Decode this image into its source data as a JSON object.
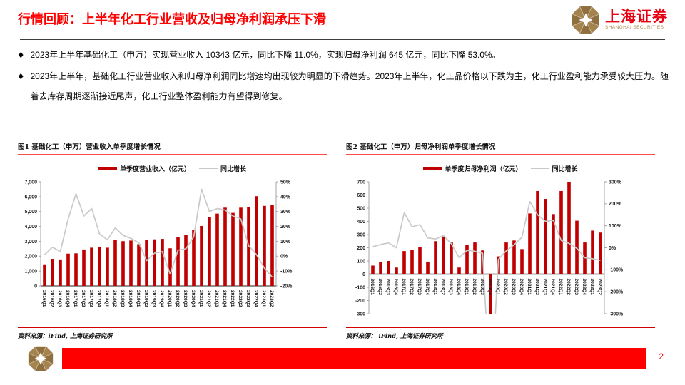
{
  "header": {
    "title": "行情回顾：上半年化工行业营收及归母净利润承压下滑",
    "logo_text": "上海证券",
    "logo_subtext": "SHANGHAI SECURITIES"
  },
  "bullets": [
    "2023年上半年基础化工（申万）实现营业收入 10343 亿元，同比下降 11.0%，实现归母净利润 645 亿元，同比下降 53.0%。",
    "2023年上半年，基础化工行业营业收入和归母净利润同比增速均出现较为明显的下滑趋势。2023年上半年，化工品价格以下跌为主，化工行业盈利能力承受较大压力。随着去库存周期逐渐接近尾声，化工行业整体盈利能力有望得到修复。"
  ],
  "figures": [
    {
      "source": "资料来源：iFind, 上海证券研究所"
    },
    {
      "source": "资料来源： iFind, 上海证券研究所"
    }
  ],
  "footer": {
    "page_number": "2"
  },
  "colors": {
    "title_red": "#fe0000",
    "bar_red": "#c00000",
    "line_gray": "#c9c9c9",
    "caption_underline": "#ff4a4a",
    "source_rule": "#d40000",
    "logo_gold": "#a5834f",
    "footer_band": "#fe0000"
  },
  "chart_data": [
    {
      "type": "bar",
      "title": "图1 基础化工（申万）营业收入单季度增长情况",
      "categories": [
        "2016Q1",
        "2016Q2",
        "2016Q3",
        "2016Q4",
        "2017Q1",
        "2017Q2",
        "2017Q3",
        "2017Q4",
        "2018Q1",
        "2018Q2",
        "2018Q3",
        "2018Q4",
        "2019Q1",
        "2019Q2",
        "2019Q3",
        "2019Q4",
        "2020Q1",
        "2020Q2",
        "2020Q3",
        "2020Q4",
        "2021Q1",
        "2021Q2",
        "2021Q3",
        "2021Q4",
        "2022Q1",
        "2022Q2",
        "2022Q3",
        "2022Q4",
        "2023Q1",
        "2023Q2"
      ],
      "series": [
        {
          "name": "单季度营业收入（亿元）",
          "kind": "bar",
          "axis": "left",
          "values": [
            1450,
            1820,
            1780,
            2170,
            2190,
            2450,
            2570,
            2640,
            2570,
            3080,
            3010,
            3050,
            2810,
            3080,
            3130,
            3160,
            2530,
            3260,
            3450,
            3790,
            4030,
            4620,
            4860,
            5260,
            4910,
            5260,
            5310,
            6030,
            5380,
            5450
          ]
        },
        {
          "name": "同比增长",
          "kind": "line",
          "axis": "right",
          "values": [
            1,
            6,
            3,
            25,
            42,
            27,
            32,
            15,
            11,
            19,
            14,
            12,
            9,
            -3,
            2,
            3,
            -12,
            4,
            5,
            13,
            45,
            30,
            32,
            31,
            27,
            25,
            7,
            1,
            -8,
            -14
          ]
        }
      ],
      "left_axis": {
        "min": 0,
        "max": 7000,
        "tick_labels": [
          "7,000",
          "6,000",
          "5,000",
          "4,000",
          "3,000",
          "2,000",
          "1,000",
          "0"
        ]
      },
      "right_axis": {
        "min": -20,
        "max": 50,
        "tick_labels": [
          "50%",
          "40%",
          "30%",
          "20%",
          "10%",
          "0%",
          "-10%",
          "-20%"
        ]
      },
      "grid": false,
      "legend_position": "top"
    },
    {
      "type": "bar",
      "title": "图2 基础化工（申万）归母净利润单季度增长情况",
      "categories": [
        "2016Q1",
        "2016Q2",
        "2016Q3",
        "2016Q4",
        "2017Q1",
        "2017Q2",
        "2017Q3",
        "2017Q4",
        "2018Q1",
        "2018Q2",
        "2018Q3",
        "2018Q4",
        "2019Q1",
        "2019Q2",
        "2019Q3",
        "2019Q4",
        "2020Q1",
        "2020Q2",
        "2020Q3",
        "2020Q4",
        "2021Q1",
        "2021Q2",
        "2021Q3",
        "2021Q4",
        "2022Q1",
        "2022Q2",
        "2022Q3",
        "2022Q4",
        "2023Q1",
        "2023Q2"
      ],
      "series": [
        {
          "name": "单季度归母净利润（亿元）",
          "kind": "bar",
          "axis": "left",
          "values": [
            65,
            90,
            100,
            50,
            175,
            185,
            205,
            95,
            250,
            285,
            240,
            50,
            220,
            240,
            180,
            -300,
            135,
            240,
            255,
            190,
            460,
            630,
            570,
            455,
            630,
            700,
            405,
            240,
            330,
            315
          ]
        },
        {
          "name": "同比增长",
          "kind": "line",
          "axis": "right",
          "values": [
            5,
            15,
            22,
            0,
            160,
            95,
            105,
            45,
            40,
            55,
            18,
            -45,
            -12,
            -16,
            -25,
            -700,
            -53,
            -14,
            14,
            48,
            210,
            150,
            120,
            125,
            33,
            20,
            -3,
            -45,
            -50,
            -57
          ]
        }
      ],
      "left_axis": {
        "min": -300,
        "max": 700,
        "tick_labels": [
          "700",
          "600",
          "500",
          "400",
          "300",
          "200",
          "100",
          "0",
          "-100",
          "-200",
          "-300"
        ]
      },
      "right_axis": {
        "min": -300,
        "max": 300,
        "tick_labels": [
          "300%",
          "200%",
          "100%",
          "0%",
          "-100%",
          "-200%",
          "-300%"
        ]
      },
      "grid": false,
      "legend_position": "top",
      "annotations": [
        "2019Q4 同比增长 falls below -300% (off scale, clipped at plot bottom)"
      ]
    }
  ]
}
